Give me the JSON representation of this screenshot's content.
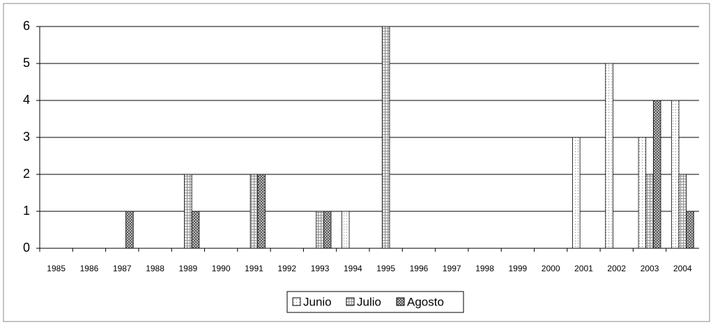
{
  "chart_data": {
    "type": "bar",
    "categories": [
      "1985",
      "1986",
      "1987",
      "1988",
      "1989",
      "1990",
      "1991",
      "1992",
      "1993",
      "1994",
      "1995",
      "1996",
      "1997",
      "1998",
      "1999",
      "2000",
      "2001",
      "2002",
      "2003",
      "2004"
    ],
    "series": [
      {
        "name": "Junio",
        "color": "#ffffff",
        "values": [
          0,
          0,
          0,
          0,
          0,
          0,
          0,
          0,
          0,
          1,
          0,
          0,
          0,
          0,
          0,
          0,
          3,
          5,
          3,
          4
        ]
      },
      {
        "name": "Julio",
        "color": "#9a9a9a",
        "values": [
          0,
          0,
          0,
          0,
          2,
          0,
          2,
          0,
          1,
          0,
          6,
          0,
          0,
          0,
          0,
          0,
          0,
          0,
          2,
          2
        ]
      },
      {
        "name": "Agosto",
        "color": "#5a5a5a",
        "values": [
          0,
          0,
          1,
          0,
          1,
          0,
          2,
          0,
          1,
          0,
          0,
          0,
          0,
          0,
          0,
          0,
          0,
          0,
          4,
          1
        ]
      }
    ],
    "ylim": [
      0,
      6
    ],
    "yticks": [
      0,
      1,
      2,
      3,
      4,
      5,
      6
    ],
    "grid": true,
    "legend": "bottom"
  }
}
